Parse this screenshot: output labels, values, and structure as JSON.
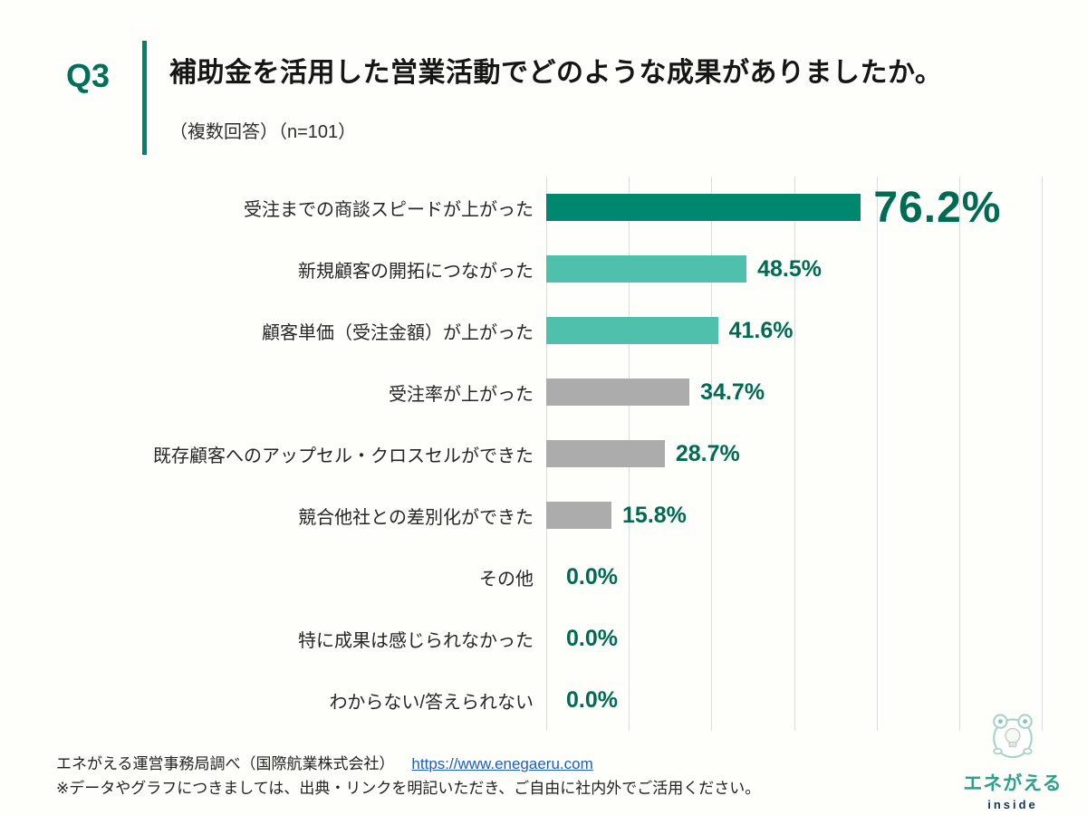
{
  "colors": {
    "accent": "#00836e",
    "q_color": "#00705a",
    "value": "#006b53",
    "grid": "#dbdbdb",
    "link": "#1d5fbf",
    "brand_teal": "#2fa08c",
    "brand_navy": "#16355b"
  },
  "header": {
    "q_label": "Q3",
    "title": "補助金を活用した営業活動でどのような成果がありましたか。",
    "subtitle": "（複数回答）（n=101）"
  },
  "chart_data": {
    "type": "bar",
    "orientation": "horizontal",
    "title": "補助金を活用した営業活動でどのような成果がありましたか。",
    "n": 101,
    "multiple_answers": true,
    "categories": [
      "受注までの商談スピードが上がった",
      "新規顧客の開拓につながった",
      "顧客単価（受注金額）が上がった",
      "受注率が上がった",
      "既存顧客へのアップセル・クロスセルができた",
      "競合他社との差別化ができた",
      "その他",
      "特に成果は感じられなかった",
      "わからない/答えられない"
    ],
    "values": [
      76.2,
      48.5,
      41.6,
      34.7,
      28.7,
      15.8,
      0.0,
      0.0,
      0.0
    ],
    "value_labels": [
      "76.2%",
      "48.5%",
      "41.6%",
      "34.7%",
      "28.7%",
      "15.8%",
      "0.0%",
      "0.0%",
      "0.0%"
    ],
    "bar_colors": [
      "#00876f",
      "#4ec0ab",
      "#4ec0ab",
      "#acacac",
      "#acacac",
      "#acacac",
      null,
      null,
      null
    ],
    "highlight_index": 0,
    "xlabel": "",
    "ylabel": "",
    "xlim": [
      0,
      120
    ],
    "gridline_interval": 20,
    "grid": true,
    "legend": "none"
  },
  "footer": {
    "source_text": "エネがえる運営事務局調べ（国際航業株式会社）",
    "source_link": "https://www.enegaeru.com",
    "note": "※データやグラフにつきましては、出典・リンクを明記いただき、ご自由に社内外でご活用ください。"
  },
  "logo": {
    "brand": "エネがえる",
    "sub": "inside"
  }
}
